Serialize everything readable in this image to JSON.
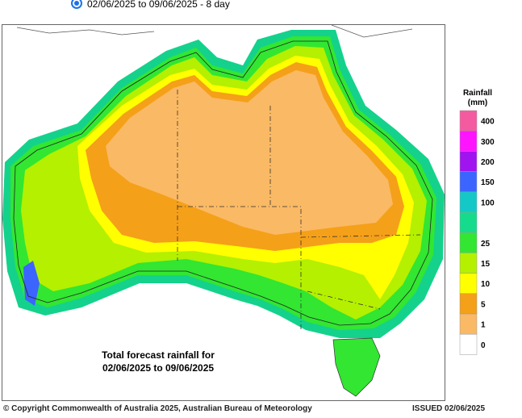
{
  "header": {
    "period": "02/06/2025 to 09/06/2025 - 8 day"
  },
  "map": {
    "caption_line1": "Total forecast rainfall for",
    "caption_line2": "02/06/2025 to 09/06/2025"
  },
  "legend": {
    "title": "Rainfall",
    "unit": "(mm)",
    "items": [
      {
        "label": "400",
        "color": "#f45aa0"
      },
      {
        "label": "300",
        "color": "#ff14ff"
      },
      {
        "label": "200",
        "color": "#a014f0"
      },
      {
        "label": "150",
        "color": "#3c64ff"
      },
      {
        "label": "100",
        "color": "#14c8c8"
      },
      {
        "label": null,
        "color": "#14dc8c"
      },
      {
        "label": "25",
        "color": "#32e632"
      },
      {
        "label": "15",
        "color": "#b4f000"
      },
      {
        "label": "10",
        "color": "#ffff00"
      },
      {
        "label": "5",
        "color": "#f5a019"
      },
      {
        "label": "1",
        "color": "#fab964"
      },
      {
        "label": "0",
        "color": "#ffffff"
      }
    ]
  },
  "footer": {
    "copyright": "© Copyright Commonwealth of Australia 2025, Australian Bureau of Meteorology",
    "issued": "ISSUED 02/06/2025"
  }
}
